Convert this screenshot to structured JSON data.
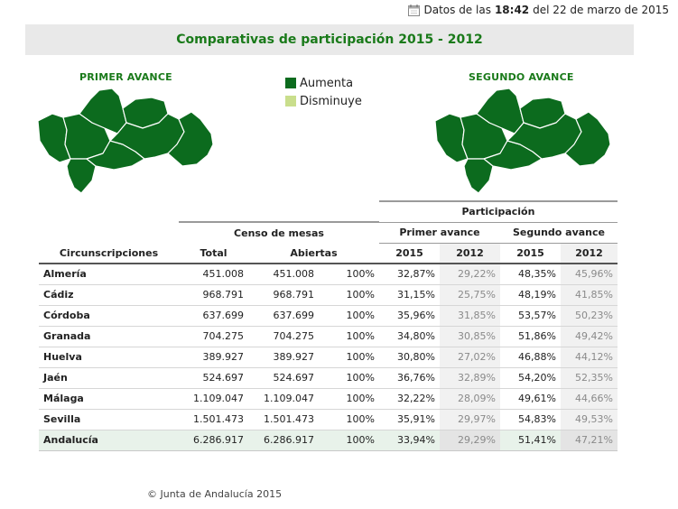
{
  "header": {
    "prefix": "Datos de las",
    "time": "18:42",
    "suffix": "del 22 de marzo de 2015"
  },
  "title": "Comparativas de participación 2015 - 2012",
  "maps": {
    "left_title": "PRIMER AVANCE",
    "right_title": "SEGUNDO AVANCE"
  },
  "legend": {
    "items": [
      {
        "label": "Aumenta",
        "color": "#0c6b1e"
      },
      {
        "label": "Disminuye",
        "color": "#c9de8c"
      }
    ]
  },
  "table": {
    "participacion_header": "Participación",
    "censo_header": "Censo de mesas",
    "primer_header": "Primer avance",
    "segundo_header": "Segundo avance",
    "col_circ": "Circunscripciones",
    "col_total": "Total",
    "col_abiertas": "Abiertas",
    "col_2015a": "2015",
    "col_2012a": "2012",
    "col_2015b": "2015",
    "col_2012b": "2012",
    "rows": [
      {
        "name": "Almería",
        "total": "451.008",
        "abiertas": "451.008",
        "pct": "100%",
        "p1_2015": "32,87%",
        "p1_2012": "29,22%",
        "p2_2015": "48,35%",
        "p2_2012": "45,96%"
      },
      {
        "name": "Cádiz",
        "total": "968.791",
        "abiertas": "968.791",
        "pct": "100%",
        "p1_2015": "31,15%",
        "p1_2012": "25,75%",
        "p2_2015": "48,19%",
        "p2_2012": "41,85%"
      },
      {
        "name": "Córdoba",
        "total": "637.699",
        "abiertas": "637.699",
        "pct": "100%",
        "p1_2015": "35,96%",
        "p1_2012": "31,85%",
        "p2_2015": "53,57%",
        "p2_2012": "50,23%"
      },
      {
        "name": "Granada",
        "total": "704.275",
        "abiertas": "704.275",
        "pct": "100%",
        "p1_2015": "34,80%",
        "p1_2012": "30,85%",
        "p2_2015": "51,86%",
        "p2_2012": "49,42%"
      },
      {
        "name": "Huelva",
        "total": "389.927",
        "abiertas": "389.927",
        "pct": "100%",
        "p1_2015": "30,80%",
        "p1_2012": "27,02%",
        "p2_2015": "46,88%",
        "p2_2012": "44,12%"
      },
      {
        "name": "Jaén",
        "total": "524.697",
        "abiertas": "524.697",
        "pct": "100%",
        "p1_2015": "36,76%",
        "p1_2012": "32,89%",
        "p2_2015": "54,20%",
        "p2_2012": "52,35%"
      },
      {
        "name": "Málaga",
        "total": "1.109.047",
        "abiertas": "1.109.047",
        "pct": "100%",
        "p1_2015": "32,22%",
        "p1_2012": "28,09%",
        "p2_2015": "49,61%",
        "p2_2012": "44,66%"
      },
      {
        "name": "Sevilla",
        "total": "1.501.473",
        "abiertas": "1.501.473",
        "pct": "100%",
        "p1_2015": "35,91%",
        "p1_2012": "29,97%",
        "p2_2015": "54,83%",
        "p2_2012": "49,53%"
      }
    ],
    "total_row": {
      "name": "Andalucía",
      "total": "6.286.917",
      "abiertas": "6.286.917",
      "pct": "100%",
      "p1_2015": "33,94%",
      "p1_2012": "29,29%",
      "p2_2015": "51,41%",
      "p2_2012": "47,21%"
    }
  },
  "footer": "© Junta de Andalucía 2015"
}
